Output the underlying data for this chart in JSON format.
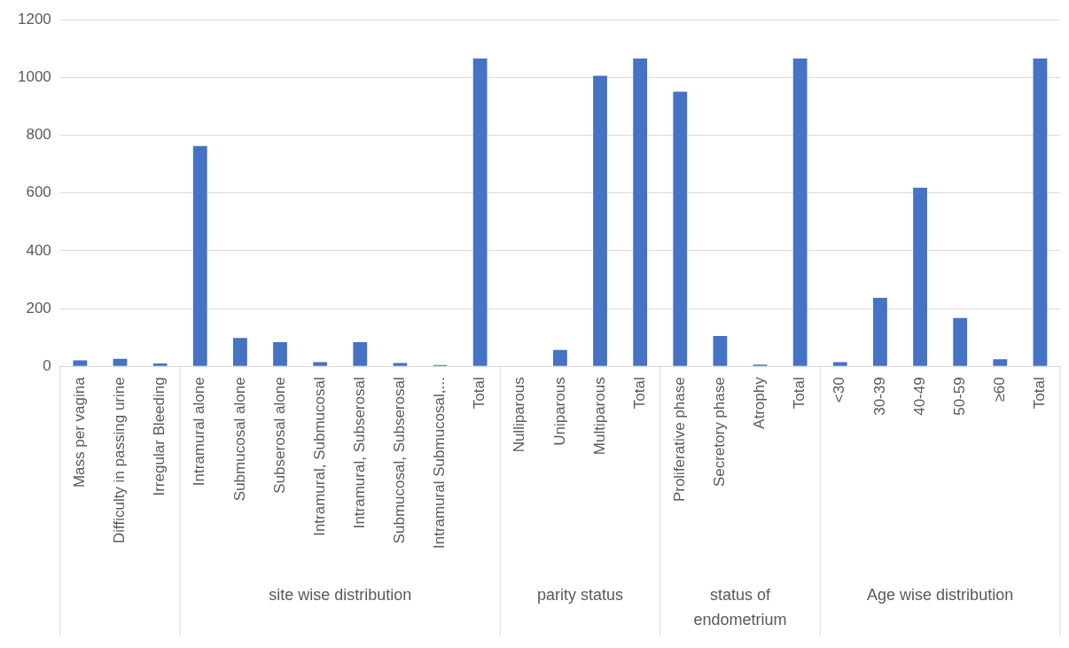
{
  "chart_data": {
    "type": "bar",
    "categories": [
      "Mass per vagina",
      "Difficulty in passing urine",
      "Irregular Bleeding",
      "Intramural alone",
      "Submucosal alone",
      "Subserosal alone",
      "Intramural, Submucosal",
      "Intramural, Subserosal",
      "Submucosal, Subserosal",
      "Intramural Submucosal,...",
      "Total",
      "Nulliparous",
      "Uniparous",
      "Multiparous",
      "Total",
      "Proliferative phase",
      "Secretory phase",
      "Atrophy",
      "Total",
      "<30",
      "30-39",
      "40-49",
      "50-59",
      "≥60",
      "Total"
    ],
    "values": [
      21,
      26,
      10,
      762,
      98,
      84,
      15,
      84,
      12,
      5,
      1065,
      0,
      57,
      1005,
      1065,
      950,
      105,
      6,
      1065,
      15,
      237,
      618,
      167,
      25,
      1065
    ],
    "color": "#4472c4",
    "ylim": [
      0,
      1200
    ],
    "yticks": [
      0,
      200,
      400,
      600,
      800,
      1000,
      1200
    ],
    "grid": "y",
    "legend": false,
    "annotations": [
      "site wise distribution",
      "parity status",
      "status of endometrium",
      "Age wise distribution"
    ]
  }
}
